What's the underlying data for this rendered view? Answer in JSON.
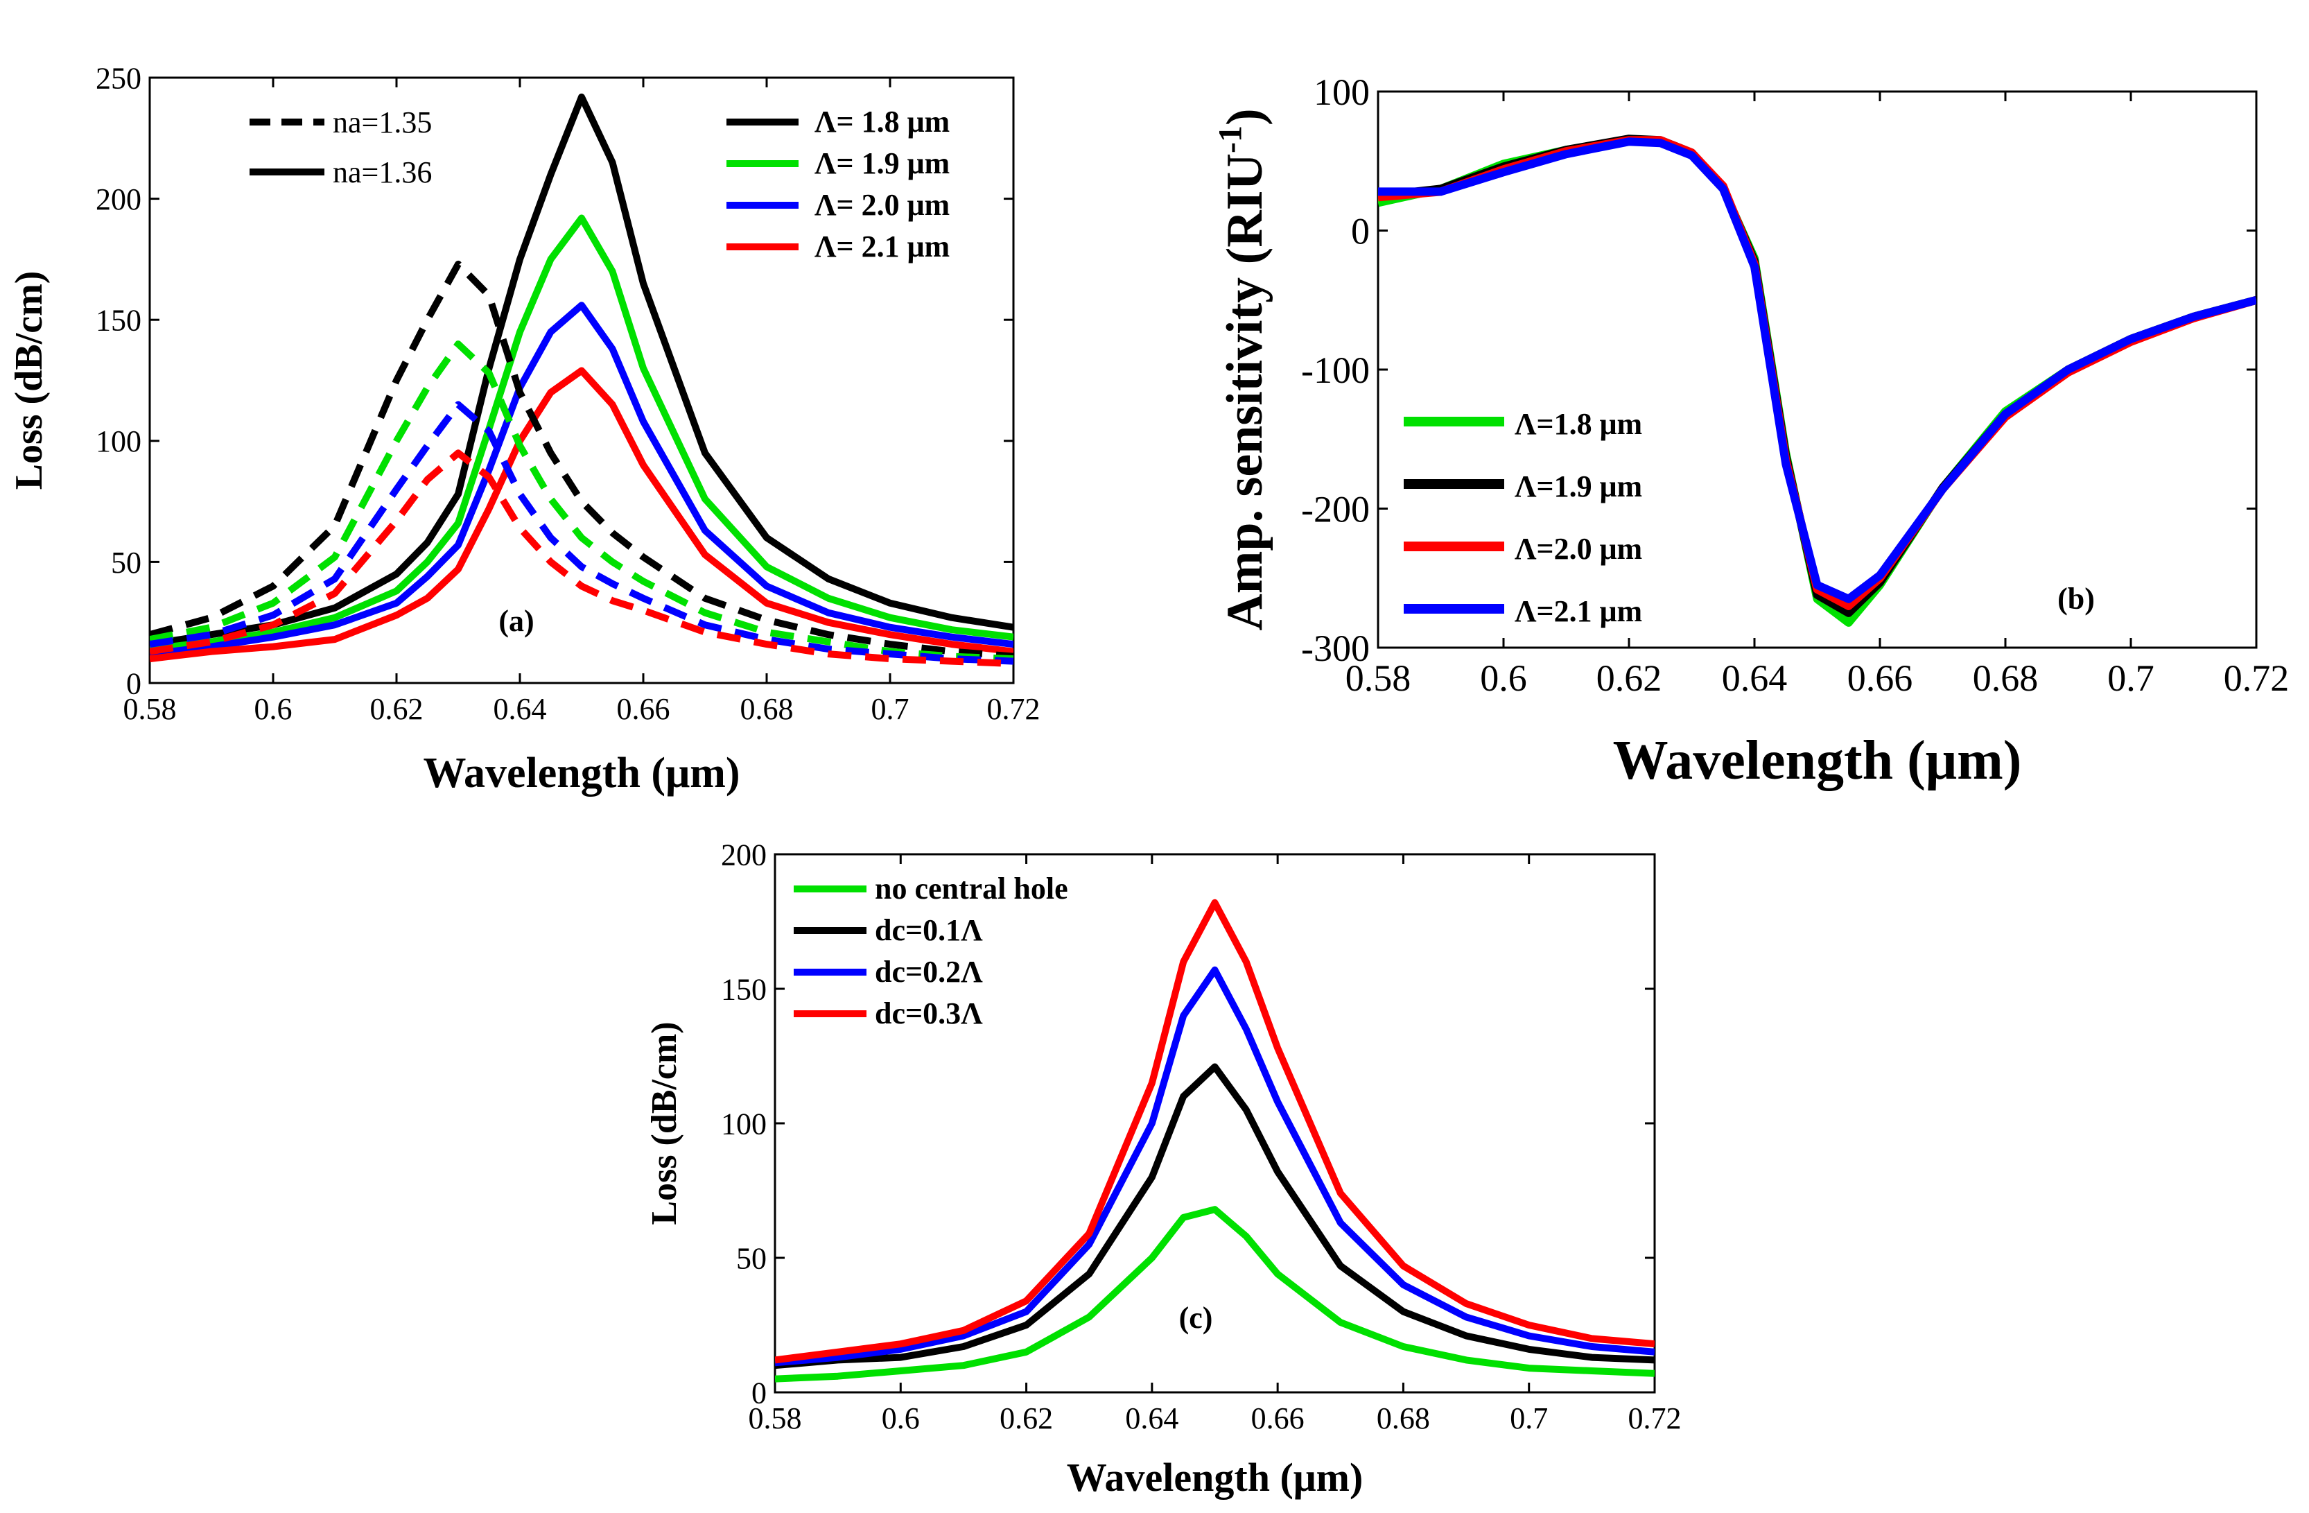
{
  "chart_data": [
    {
      "id": "a",
      "type": "line",
      "panel_label": "(a)",
      "xlabel": "Wavelength (μm)",
      "ylabel": "Loss (dB/cm)",
      "xlim": [
        0.58,
        0.72
      ],
      "ylim": [
        0,
        250
      ],
      "xticks": [
        0.58,
        0.6,
        0.62,
        0.64,
        0.66,
        0.68,
        0.7,
        0.72
      ],
      "xtick_labels": [
        "0.58",
        "0.6",
        "0.62",
        "0.64",
        "0.66",
        "0.68",
        "0.7",
        "0.72"
      ],
      "yticks": [
        0,
        50,
        100,
        150,
        200,
        250
      ],
      "ytick_labels": [
        "0",
        "50",
        "100",
        "150",
        "200",
        "250"
      ],
      "style_legend": [
        {
          "label": "na=1.35",
          "dash": true
        },
        {
          "label": "na=1.36",
          "dash": false
        }
      ],
      "legend": [
        {
          "label": "Λ= 1.8 μm",
          "color": "#000000"
        },
        {
          "label": "Λ= 1.9 μm",
          "color": "#00e000"
        },
        {
          "label": "Λ= 2.0 μm",
          "color": "#0000ff"
        },
        {
          "label": "Λ= 2.1 μm",
          "color": "#ff0000"
        }
      ],
      "x": [
        0.58,
        0.59,
        0.6,
        0.61,
        0.62,
        0.625,
        0.63,
        0.635,
        0.64,
        0.645,
        0.65,
        0.655,
        0.66,
        0.67,
        0.68,
        0.69,
        0.7,
        0.71,
        0.72
      ],
      "series": [
        {
          "name": "Λ= 1.8 μm, na=1.36",
          "color": "#000000",
          "dash": false,
          "values": [
            16,
            20,
            24,
            31,
            45,
            58,
            78,
            130,
            175,
            210,
            242,
            215,
            165,
            95,
            60,
            43,
            33,
            27,
            23
          ]
        },
        {
          "name": "Λ= 1.9 μm, na=1.36",
          "color": "#00e000",
          "dash": false,
          "values": [
            14,
            17,
            21,
            27,
            38,
            50,
            66,
            105,
            145,
            175,
            192,
            170,
            130,
            76,
            48,
            35,
            27,
            22,
            19
          ]
        },
        {
          "name": "Λ= 2.0 μm, na=1.36",
          "color": "#0000ff",
          "dash": false,
          "values": [
            12,
            15,
            19,
            24,
            33,
            44,
            57,
            88,
            122,
            145,
            156,
            138,
            108,
            63,
            40,
            29,
            23,
            19,
            16
          ]
        },
        {
          "name": "Λ= 2.1 μm, na=1.36",
          "color": "#ff0000",
          "dash": false,
          "values": [
            10,
            13,
            15,
            18,
            28,
            35,
            47,
            72,
            100,
            120,
            129,
            115,
            90,
            53,
            33,
            25,
            20,
            16,
            13
          ]
        },
        {
          "name": "Λ= 1.8 μm, na=1.35",
          "color": "#000000",
          "dash": true,
          "values": [
            20,
            27,
            40,
            65,
            125,
            150,
            173,
            160,
            120,
            95,
            75,
            62,
            52,
            35,
            26,
            20,
            16,
            13,
            11
          ]
        },
        {
          "name": "Λ= 1.9 μm, na=1.35",
          "color": "#00e000",
          "dash": true,
          "values": [
            18,
            23,
            33,
            52,
            100,
            122,
            140,
            128,
            98,
            76,
            60,
            50,
            42,
            29,
            21,
            17,
            13,
            11,
            10
          ]
        },
        {
          "name": "Λ= 2.0 μm, na=1.35",
          "color": "#0000ff",
          "dash": true,
          "values": [
            16,
            20,
            28,
            43,
            80,
            98,
            115,
            104,
            78,
            60,
            48,
            41,
            35,
            24,
            18,
            14,
            12,
            10,
            9
          ]
        },
        {
          "name": "Λ= 2.1 μm, na=1.35",
          "color": "#ff0000",
          "dash": true,
          "values": [
            13,
            17,
            24,
            37,
            67,
            84,
            95,
            85,
            64,
            50,
            40,
            34,
            30,
            21,
            16,
            12,
            10,
            9,
            8
          ]
        }
      ]
    },
    {
      "id": "b",
      "type": "line",
      "panel_label": "(b)",
      "xlabel": "Wavelength (μm)",
      "ylabel_main": "Amp. sensitivity (RIU",
      "ylabel_sup": "-1",
      "ylabel_end": ")",
      "xlim": [
        0.58,
        0.72
      ],
      "ylim": [
        -300,
        100
      ],
      "xticks": [
        0.58,
        0.6,
        0.62,
        0.64,
        0.66,
        0.68,
        0.7,
        0.72
      ],
      "xtick_labels": [
        "0.58",
        "0.6",
        "0.62",
        "0.64",
        "0.66",
        "0.68",
        "0.7",
        "0.72"
      ],
      "yticks": [
        -300,
        -200,
        -100,
        0,
        100
      ],
      "ytick_labels": [
        "-300",
        "-200",
        "-100",
        "0",
        "100"
      ],
      "legend": [
        {
          "label": "Λ=1.8 μm",
          "color": "#00e000"
        },
        {
          "label": "Λ=1.9 μm",
          "color": "#000000"
        },
        {
          "label": "Λ=2.0 μm",
          "color": "#ff0000"
        },
        {
          "label": "Λ=2.1 μm",
          "color": "#0000ff"
        }
      ],
      "x": [
        0.58,
        0.59,
        0.6,
        0.61,
        0.62,
        0.625,
        0.63,
        0.635,
        0.64,
        0.645,
        0.65,
        0.655,
        0.66,
        0.67,
        0.68,
        0.69,
        0.7,
        0.71,
        0.72
      ],
      "series": [
        {
          "name": "Λ=1.8 μm",
          "color": "#00e000",
          "values": [
            20,
            30,
            48,
            58,
            65,
            64,
            55,
            30,
            -20,
            -160,
            -265,
            -282,
            -255,
            -185,
            -130,
            -100,
            -78,
            -62,
            -50
          ]
        },
        {
          "name": "Λ=1.9 μm",
          "color": "#000000",
          "values": [
            25,
            30,
            46,
            58,
            66,
            65,
            56,
            31,
            -22,
            -162,
            -262,
            -275,
            -253,
            -185,
            -132,
            -100,
            -78,
            -62,
            -50
          ]
        },
        {
          "name": "Λ=2.0 μm",
          "color": "#ff0000",
          "values": [
            24,
            28,
            44,
            57,
            65,
            65,
            56,
            32,
            -24,
            -165,
            -258,
            -270,
            -250,
            -186,
            -134,
            -102,
            -80,
            -63,
            -50
          ]
        },
        {
          "name": "Λ=2.1 μm",
          "color": "#0000ff",
          "values": [
            28,
            28,
            42,
            55,
            64,
            63,
            54,
            30,
            -26,
            -168,
            -255,
            -265,
            -248,
            -186,
            -132,
            -100,
            -78,
            -62,
            -50
          ]
        }
      ]
    },
    {
      "id": "c",
      "type": "line",
      "panel_label": "(c)",
      "xlabel": "Wavelength (μm)",
      "ylabel": "Loss (dB/cm)",
      "xlim": [
        0.58,
        0.72
      ],
      "ylim": [
        0,
        200
      ],
      "xticks": [
        0.58,
        0.6,
        0.62,
        0.64,
        0.66,
        0.68,
        0.7,
        0.72
      ],
      "xtick_labels": [
        "0.58",
        "0.6",
        "0.62",
        "0.64",
        "0.66",
        "0.68",
        "0.7",
        "0.72"
      ],
      "yticks": [
        0,
        50,
        100,
        150,
        200
      ],
      "ytick_labels": [
        "0",
        "50",
        "100",
        "150",
        "200"
      ],
      "legend": [
        {
          "label": "no central hole",
          "color": "#00e000"
        },
        {
          "label": "dc=0.1Λ",
          "color": "#000000"
        },
        {
          "label": "dc=0.2Λ",
          "color": "#0000ff"
        },
        {
          "label": "dc=0.3Λ",
          "color": "#ff0000"
        }
      ],
      "x": [
        0.58,
        0.59,
        0.6,
        0.61,
        0.62,
        0.63,
        0.64,
        0.645,
        0.65,
        0.655,
        0.66,
        0.67,
        0.68,
        0.69,
        0.7,
        0.71,
        0.72
      ],
      "series": [
        {
          "name": "no central hole",
          "color": "#00e000",
          "values": [
            5,
            6,
            8,
            10,
            15,
            28,
            50,
            65,
            68,
            58,
            44,
            26,
            17,
            12,
            9,
            8,
            7
          ]
        },
        {
          "name": "dc=0.1Λ",
          "color": "#000000",
          "values": [
            10,
            12,
            13,
            17,
            25,
            44,
            80,
            110,
            121,
            105,
            82,
            47,
            30,
            21,
            16,
            13,
            12
          ]
        },
        {
          "name": "dc=0.2Λ",
          "color": "#0000ff",
          "values": [
            11,
            13,
            16,
            21,
            30,
            55,
            100,
            140,
            157,
            135,
            108,
            63,
            40,
            28,
            21,
            17,
            15
          ]
        },
        {
          "name": "dc=0.3Λ",
          "color": "#ff0000",
          "values": [
            12,
            15,
            18,
            23,
            34,
            59,
            115,
            160,
            182,
            160,
            128,
            74,
            47,
            33,
            25,
            20,
            18
          ]
        }
      ]
    }
  ]
}
